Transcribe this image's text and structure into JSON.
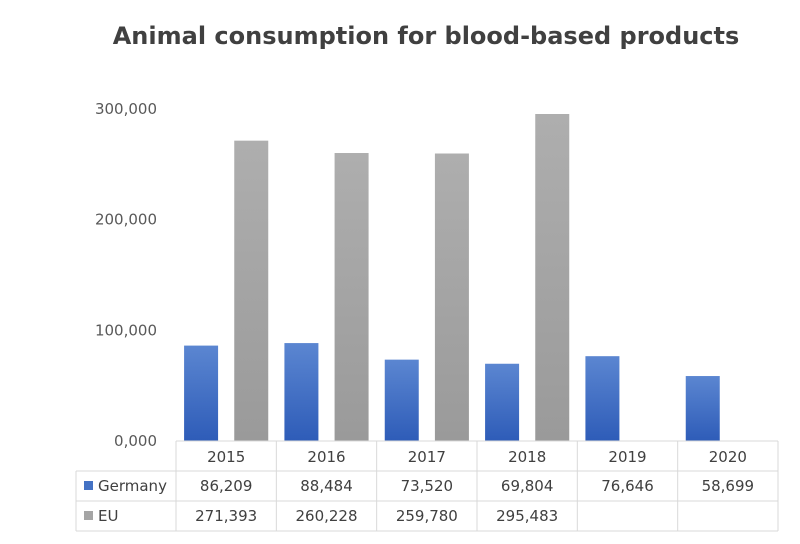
{
  "chart_data": {
    "type": "bar",
    "title": "Animal consumption for blood-based products",
    "categories": [
      "2015",
      "2016",
      "2017",
      "2018",
      "2019",
      "2020"
    ],
    "series": [
      {
        "name": "Germany",
        "color": "#4472c4",
        "values": [
          86209,
          88484,
          73520,
          69804,
          76646,
          58699
        ],
        "labels": [
          "86,209",
          "88,484",
          "73,520",
          "69,804",
          "76,646",
          "58,699"
        ]
      },
      {
        "name": "EU",
        "color": "#a5a5a5",
        "values": [
          271393,
          260228,
          259780,
          295483,
          null,
          null
        ],
        "labels": [
          "271,393",
          "260,228",
          "259,780",
          "295,483",
          "",
          ""
        ]
      }
    ],
    "ylim": [
      0,
      300000
    ],
    "yticks": [
      0,
      100000,
      200000,
      300000
    ],
    "ytick_labels": [
      "0,000",
      "100,000",
      "200,000",
      "300,000"
    ],
    "data_table": true,
    "legend": "data-table"
  }
}
